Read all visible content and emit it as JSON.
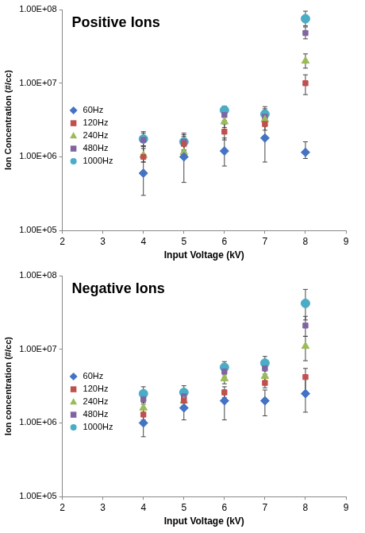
{
  "chart_data": [
    {
      "type": "scatter",
      "title": "Positive Ions",
      "x_label": "Input Voltage (kV)",
      "y_label": "Ion Concentration (#/cc)",
      "log": "y",
      "grid": false,
      "legend": "left",
      "xlim": [
        2,
        9
      ],
      "xticks": [
        2,
        3,
        4,
        5,
        6,
        7,
        8,
        9
      ],
      "ylim": [
        100000,
        100000000
      ],
      "yticks": [
        {
          "value": 100000,
          "label": "1.00E+05"
        },
        {
          "value": 1000000,
          "label": "1.00E+06"
        },
        {
          "value": 10000000,
          "label": "1.00E+07"
        },
        {
          "value": 100000000,
          "label": "1.00E+08"
        }
      ],
      "x": [
        4,
        5,
        6,
        7,
        8
      ],
      "series": [
        {
          "name": "60Hz",
          "color": "#4472c4",
          "marker": "diamond",
          "values": [
            600000,
            1000000,
            1200000,
            1800000,
            1150000
          ],
          "y_low": [
            300000,
            450000,
            750000,
            850000,
            950000
          ],
          "y_high": [
            1400000,
            1800000,
            1800000,
            4500000,
            1600000
          ]
        },
        {
          "name": "120Hz",
          "color": "#c0504d",
          "marker": "square",
          "values": [
            1000000,
            1500000,
            2200000,
            2800000,
            10000000
          ],
          "y_low": [
            850000,
            1200000,
            1700000,
            2300000,
            7000000
          ],
          "y_high": [
            1400000,
            1900000,
            2800000,
            3400000,
            13000000
          ]
        },
        {
          "name": "240Hz",
          "color": "#9bbb59",
          "marker": "triangle",
          "values": [
            1050000,
            1150000,
            3000000,
            3200000,
            20000000
          ],
          "y_low": [
            850000,
            950000,
            2500000,
            2600000,
            16000000
          ],
          "y_high": [
            1300000,
            1450000,
            3600000,
            3900000,
            25000000
          ]
        },
        {
          "name": "480Hz",
          "color": "#8064a2",
          "marker": "square",
          "values": [
            1700000,
            1600000,
            3700000,
            3500000,
            48000000
          ],
          "y_low": [
            1400000,
            1250000,
            3100000,
            2900000,
            40000000
          ],
          "y_high": [
            2100000,
            2000000,
            4400000,
            4300000,
            58000000
          ]
        },
        {
          "name": "1000Hz",
          "color": "#4bacc6",
          "marker": "circle",
          "values": [
            1750000,
            1600000,
            4300000,
            3800000,
            75000000
          ],
          "y_low": [
            1400000,
            1200000,
            3600000,
            3000000,
            60000000
          ],
          "y_high": [
            2200000,
            2100000,
            4900000,
            4800000,
            95000000
          ]
        }
      ]
    },
    {
      "type": "scatter",
      "title": "Negative Ions",
      "x_label": "Input Voltage (kV)",
      "y_label": "Ion concentration (#/cc)",
      "log": "y",
      "grid": false,
      "legend": "left",
      "xlim": [
        2,
        9
      ],
      "xticks": [
        2,
        3,
        4,
        5,
        6,
        7,
        8,
        9
      ],
      "ylim": [
        100000,
        100000000
      ],
      "yticks": [
        {
          "value": 100000,
          "label": "1.00E+05"
        },
        {
          "value": 1000000,
          "label": "1.00E+06"
        },
        {
          "value": 10000000,
          "label": "1.00E+07"
        },
        {
          "value": 100000000,
          "label": "1.00E+08"
        }
      ],
      "x": [
        4,
        5,
        6,
        7,
        8
      ],
      "series": [
        {
          "name": "60Hz",
          "color": "#4472c4",
          "marker": "diamond",
          "values": [
            1000000,
            1600000,
            2000000,
            2000000,
            2500000
          ],
          "y_low": [
            650000,
            1100000,
            1100000,
            1250000,
            1400000
          ],
          "y_high": [
            1300000,
            2200000,
            2800000,
            2800000,
            4000000
          ]
        },
        {
          "name": "120Hz",
          "color": "#c0504d",
          "marker": "square",
          "values": [
            1300000,
            2000000,
            2600000,
            3500000,
            4200000
          ],
          "y_low": [
            1100000,
            1700000,
            2200000,
            3000000,
            2700000
          ],
          "y_high": [
            1600000,
            2400000,
            3100000,
            4100000,
            5500000
          ]
        },
        {
          "name": "240Hz",
          "color": "#9bbb59",
          "marker": "triangle",
          "values": [
            1600000,
            2000000,
            4000000,
            4300000,
            11000000
          ],
          "y_low": [
            1300000,
            1700000,
            3400000,
            3600000,
            7000000
          ],
          "y_high": [
            1900000,
            2400000,
            4700000,
            5100000,
            15000000
          ]
        },
        {
          "name": "480Hz",
          "color": "#8064a2",
          "marker": "square",
          "values": [
            2100000,
            2300000,
            5000000,
            5500000,
            21000000
          ],
          "y_low": [
            1800000,
            1900000,
            4200000,
            4600000,
            15000000
          ],
          "y_high": [
            2500000,
            2800000,
            6000000,
            6600000,
            28000000
          ]
        },
        {
          "name": "1000Hz",
          "color": "#4bacc6",
          "marker": "circle",
          "values": [
            2500000,
            2600000,
            5700000,
            6500000,
            42000000
          ],
          "y_low": [
            2000000,
            2100000,
            4500000,
            5500000,
            25000000
          ],
          "y_high": [
            3100000,
            3200000,
            6800000,
            8000000,
            65000000
          ]
        }
      ]
    }
  ]
}
